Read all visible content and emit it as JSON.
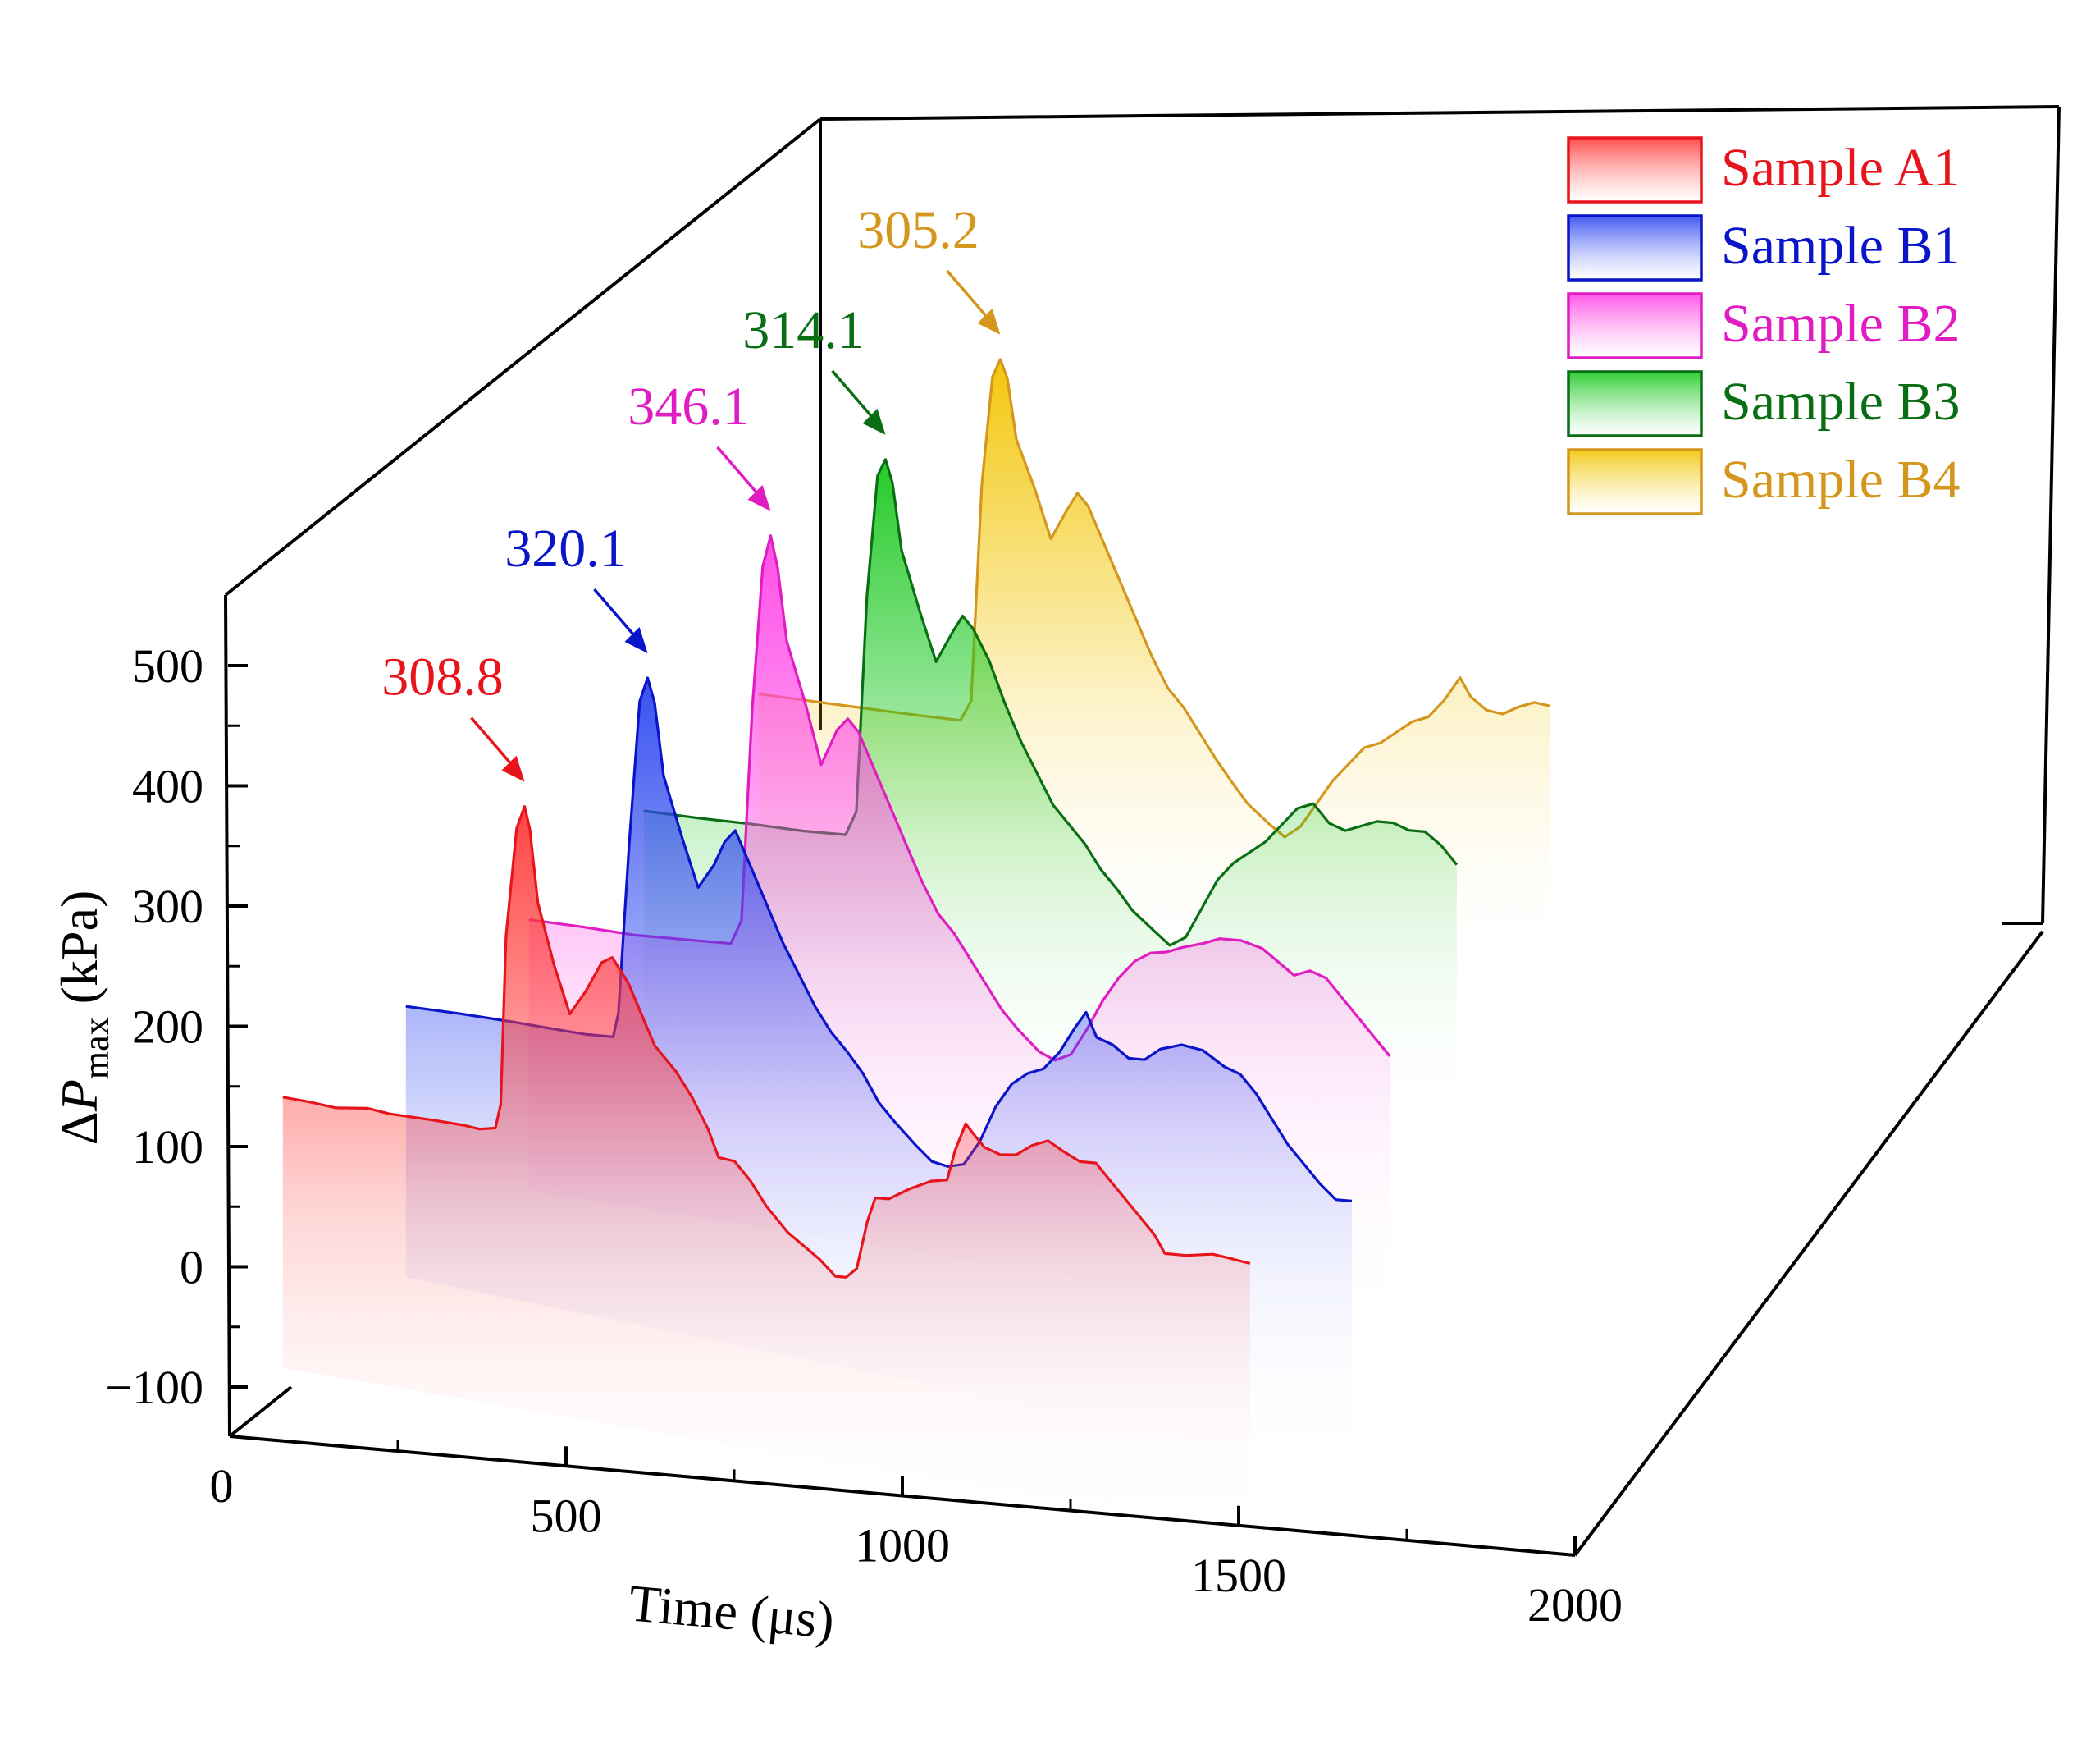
{
  "chart_data": {
    "type": "line",
    "style": "3d-waterfall",
    "xlabel": "Time (μs)",
    "ylabel": "ΔPmax (kPa)",
    "ylabel_parts": {
      "delta": "Δ",
      "var": "P",
      "sub": "max",
      "unit": " (kPa)"
    },
    "xlim": [
      0,
      2000
    ],
    "ylim": [
      -150,
      550
    ],
    "x_ticks": [
      "0",
      "500",
      "1000",
      "1500",
      "2000"
    ],
    "y_ticks": [
      "−100",
      "0",
      "100",
      "200",
      "300",
      "400",
      "500"
    ],
    "grid": false,
    "legend_position": "top-right",
    "series": [
      {
        "name": "Sample A1",
        "color": "#e8141b",
        "fill_color": "#ff3a3a",
        "peak_label": "308.8",
        "peak_time": 555,
        "peak_value": 308.8,
        "points": [
          [
            100,
            50
          ],
          [
            150,
            48
          ],
          [
            200,
            45
          ],
          [
            260,
            47
          ],
          [
            300,
            44
          ],
          [
            380,
            42
          ],
          [
            440,
            40
          ],
          [
            470,
            38
          ],
          [
            500,
            40
          ],
          [
            510,
            60
          ],
          [
            520,
            200
          ],
          [
            540,
            290
          ],
          [
            555,
            308.8
          ],
          [
            565,
            290
          ],
          [
            580,
            230
          ],
          [
            610,
            180
          ],
          [
            640,
            140
          ],
          [
            670,
            160
          ],
          [
            700,
            185
          ],
          [
            720,
            190
          ],
          [
            750,
            170
          ],
          [
            780,
            140
          ],
          [
            800,
            120
          ],
          [
            840,
            100
          ],
          [
            870,
            80
          ],
          [
            900,
            55
          ],
          [
            920,
            32
          ],
          [
            950,
            30
          ],
          [
            980,
            15
          ],
          [
            1010,
            -5
          ],
          [
            1050,
            -25
          ],
          [
            1080,
            -35
          ],
          [
            1110,
            -45
          ],
          [
            1140,
            -58
          ],
          [
            1160,
            -58
          ],
          [
            1180,
            -50
          ],
          [
            1200,
            -10
          ],
          [
            1215,
            10
          ],
          [
            1240,
            10
          ],
          [
            1280,
            20
          ],
          [
            1320,
            28
          ],
          [
            1350,
            30
          ],
          [
            1365,
            55
          ],
          [
            1385,
            78
          ],
          [
            1400,
            70
          ],
          [
            1420,
            60
          ],
          [
            1450,
            55
          ],
          [
            1480,
            56
          ],
          [
            1510,
            65
          ],
          [
            1540,
            70
          ],
          [
            1570,
            62
          ],
          [
            1600,
            55
          ],
          [
            1630,
            55
          ],
          [
            1660,
            40
          ],
          [
            1700,
            20
          ],
          [
            1740,
            0
          ],
          [
            1760,
            -15
          ],
          [
            1800,
            -15
          ],
          [
            1850,
            -12
          ],
          [
            1880,
            -14
          ],
          [
            1920,
            -17
          ]
        ]
      },
      {
        "name": "Sample B1",
        "color": "#0a14c8",
        "fill_color": "#2e48f0",
        "peak_label": "320.1",
        "peak_time": 555,
        "peak_value": 320.1,
        "points": [
          [
            100,
            30
          ],
          [
            200,
            28
          ],
          [
            300,
            25
          ],
          [
            380,
            22
          ],
          [
            440,
            20
          ],
          [
            490,
            20
          ],
          [
            500,
            40
          ],
          [
            520,
            180
          ],
          [
            540,
            300
          ],
          [
            555,
            320.1
          ],
          [
            568,
            300
          ],
          [
            585,
            240
          ],
          [
            620,
            190
          ],
          [
            650,
            150
          ],
          [
            680,
            170
          ],
          [
            700,
            190
          ],
          [
            720,
            200
          ],
          [
            750,
            170
          ],
          [
            780,
            140
          ],
          [
            810,
            110
          ],
          [
            840,
            85
          ],
          [
            870,
            60
          ],
          [
            900,
            40
          ],
          [
            930,
            25
          ],
          [
            960,
            8
          ],
          [
            990,
            -15
          ],
          [
            1020,
            -30
          ],
          [
            1060,
            -48
          ],
          [
            1090,
            -60
          ],
          [
            1120,
            -63
          ],
          [
            1150,
            -60
          ],
          [
            1180,
            -40
          ],
          [
            1210,
            -10
          ],
          [
            1240,
            10
          ],
          [
            1270,
            20
          ],
          [
            1300,
            25
          ],
          [
            1330,
            40
          ],
          [
            1360,
            62
          ],
          [
            1380,
            75
          ],
          [
            1400,
            55
          ],
          [
            1430,
            50
          ],
          [
            1460,
            40
          ],
          [
            1490,
            40
          ],
          [
            1520,
            50
          ],
          [
            1560,
            55
          ],
          [
            1600,
            52
          ],
          [
            1640,
            40
          ],
          [
            1670,
            35
          ],
          [
            1700,
            20
          ],
          [
            1730,
            0
          ],
          [
            1760,
            -20
          ],
          [
            1790,
            -35
          ],
          [
            1820,
            -50
          ],
          [
            1850,
            -62
          ],
          [
            1880,
            -62
          ]
        ]
      },
      {
        "name": "Sample B2",
        "color": "#e01cc2",
        "fill_color": "#ff44e6",
        "peak_label": "346.1",
        "peak_time": 555,
        "peak_value": 346.1,
        "points": [
          [
            100,
            10
          ],
          [
            200,
            8
          ],
          [
            300,
            5
          ],
          [
            400,
            5
          ],
          [
            480,
            5
          ],
          [
            500,
            25
          ],
          [
            520,
            200
          ],
          [
            540,
            320
          ],
          [
            555,
            346.1
          ],
          [
            568,
            320
          ],
          [
            585,
            260
          ],
          [
            620,
            210
          ],
          [
            650,
            160
          ],
          [
            680,
            190
          ],
          [
            700,
            200
          ],
          [
            720,
            190
          ],
          [
            750,
            160
          ],
          [
            780,
            130
          ],
          [
            810,
            100
          ],
          [
            840,
            70
          ],
          [
            870,
            45
          ],
          [
            900,
            30
          ],
          [
            930,
            10
          ],
          [
            960,
            -10
          ],
          [
            990,
            -30
          ],
          [
            1020,
            -45
          ],
          [
            1060,
            -62
          ],
          [
            1090,
            -68
          ],
          [
            1120,
            -62
          ],
          [
            1150,
            -40
          ],
          [
            1180,
            -15
          ],
          [
            1210,
            5
          ],
          [
            1240,
            20
          ],
          [
            1270,
            28
          ],
          [
            1300,
            30
          ],
          [
            1330,
            35
          ],
          [
            1370,
            40
          ],
          [
            1400,
            45
          ],
          [
            1440,
            45
          ],
          [
            1480,
            40
          ],
          [
            1510,
            30
          ],
          [
            1540,
            20
          ],
          [
            1570,
            25
          ],
          [
            1600,
            20
          ],
          [
            1640,
            0
          ],
          [
            1680,
            -20
          ],
          [
            1720,
            -40
          ]
        ]
      },
      {
        "name": "Sample B3",
        "color": "#0a6e14",
        "fill_color": "#19c81e",
        "peak_label": "314.1",
        "peak_time": 555,
        "peak_value": 314.1,
        "points": [
          [
            100,
            5
          ],
          [
            200,
            3
          ],
          [
            300,
            2
          ],
          [
            400,
            0
          ],
          [
            480,
            0
          ],
          [
            500,
            20
          ],
          [
            520,
            200
          ],
          [
            540,
            300
          ],
          [
            555,
            314.1
          ],
          [
            568,
            295
          ],
          [
            585,
            240
          ],
          [
            620,
            190
          ],
          [
            650,
            150
          ],
          [
            680,
            175
          ],
          [
            700,
            190
          ],
          [
            720,
            180
          ],
          [
            750,
            155
          ],
          [
            780,
            120
          ],
          [
            810,
            90
          ],
          [
            840,
            65
          ],
          [
            870,
            40
          ],
          [
            900,
            25
          ],
          [
            930,
            10
          ],
          [
            960,
            -10
          ],
          [
            990,
            -25
          ],
          [
            1020,
            -42
          ],
          [
            1060,
            -57
          ],
          [
            1090,
            -68
          ],
          [
            1120,
            -60
          ],
          [
            1150,
            -35
          ],
          [
            1180,
            -10
          ],
          [
            1210,
            5
          ],
          [
            1240,
            15
          ],
          [
            1270,
            25
          ],
          [
            1300,
            40
          ],
          [
            1330,
            55
          ],
          [
            1360,
            60
          ],
          [
            1390,
            45
          ],
          [
            1420,
            40
          ],
          [
            1450,
            45
          ],
          [
            1480,
            50
          ],
          [
            1510,
            50
          ],
          [
            1540,
            45
          ],
          [
            1570,
            45
          ],
          [
            1600,
            35
          ],
          [
            1630,
            20
          ]
        ]
      },
      {
        "name": "Sample B4",
        "color": "#d4961c",
        "fill_color": "#f2c400",
        "peak_label": "305.2",
        "peak_time": 555,
        "peak_value": 305.2,
        "points": [
          [
            100,
            10
          ],
          [
            200,
            8
          ],
          [
            300,
            6
          ],
          [
            400,
            4
          ],
          [
            480,
            3
          ],
          [
            500,
            20
          ],
          [
            520,
            200
          ],
          [
            540,
            290
          ],
          [
            555,
            305.2
          ],
          [
            568,
            290
          ],
          [
            585,
            240
          ],
          [
            620,
            200
          ],
          [
            650,
            160
          ],
          [
            680,
            185
          ],
          [
            700,
            200
          ],
          [
            720,
            190
          ],
          [
            750,
            160
          ],
          [
            780,
            130
          ],
          [
            810,
            100
          ],
          [
            840,
            70
          ],
          [
            870,
            45
          ],
          [
            900,
            30
          ],
          [
            930,
            10
          ],
          [
            960,
            -10
          ],
          [
            990,
            -28
          ],
          [
            1020,
            -45
          ],
          [
            1060,
            -60
          ],
          [
            1090,
            -70
          ],
          [
            1120,
            -60
          ],
          [
            1150,
            -40
          ],
          [
            1180,
            -20
          ],
          [
            1210,
            -5
          ],
          [
            1240,
            10
          ],
          [
            1270,
            15
          ],
          [
            1300,
            25
          ],
          [
            1330,
            35
          ],
          [
            1360,
            40
          ],
          [
            1390,
            55
          ],
          [
            1420,
            75
          ],
          [
            1440,
            60
          ],
          [
            1470,
            50
          ],
          [
            1500,
            48
          ],
          [
            1530,
            55
          ],
          [
            1560,
            60
          ],
          [
            1590,
            58
          ]
        ]
      }
    ]
  }
}
